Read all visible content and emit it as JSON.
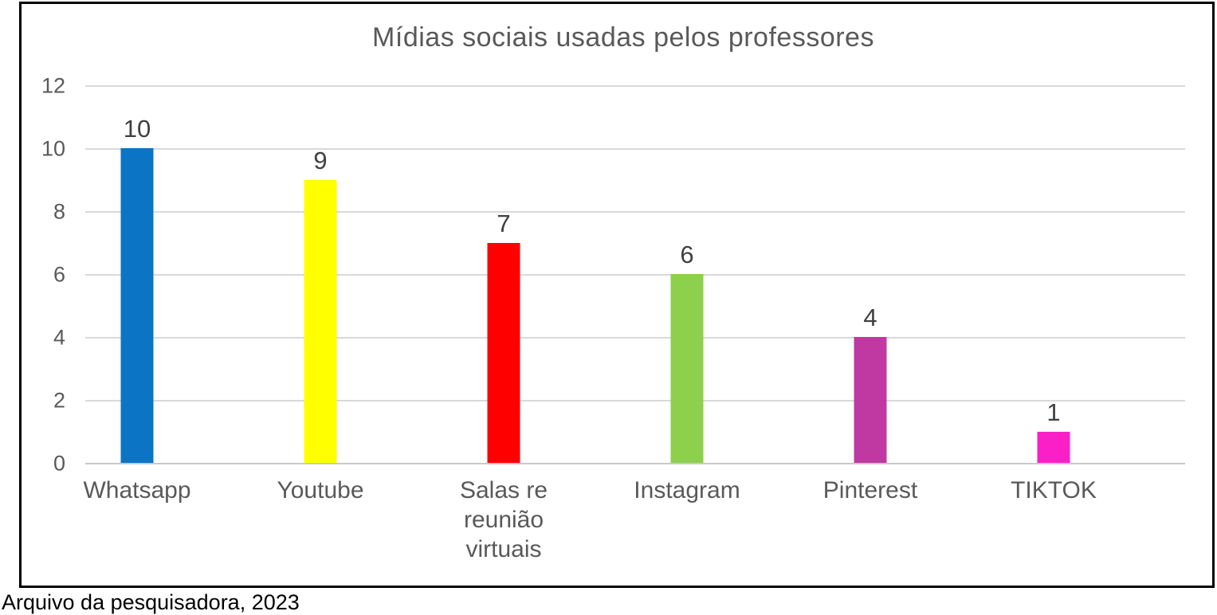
{
  "page": {
    "background": "#ffffff",
    "caption_partial": "Arquivo da pesquisadora, 2023"
  },
  "frame": {
    "border_color": "#000000",
    "background": "#ffffff"
  },
  "chart_data": {
    "type": "bar",
    "title": "Mídias sociais usadas pelos professores",
    "categories": [
      "Whatsapp",
      "Youtube",
      "Salas re reunião virtuais",
      "Instagram",
      "Pinterest",
      "TIKTOK"
    ],
    "values": [
      10,
      9,
      7,
      6,
      4,
      1
    ],
    "data_labels": [
      "10",
      "9",
      "7",
      "6",
      "4",
      "1"
    ],
    "bar_colors": [
      "#0B74C4",
      "#FFFF00",
      "#FF0000",
      "#8CD04C",
      "#C039A3",
      "#FB1FC8"
    ],
    "ylim": [
      0,
      12
    ],
    "yticks": [
      0,
      2,
      4,
      6,
      8,
      10,
      12
    ],
    "grid": "horizontal",
    "legend": "none",
    "xlabel": "",
    "ylabel": "",
    "colors": {
      "title": "#595959",
      "tick_labels": "#595959",
      "data_labels": "#404040",
      "category_labels": "#595959",
      "gridline": "#D9D9D9",
      "axis_line": "#C9C9C9"
    }
  }
}
